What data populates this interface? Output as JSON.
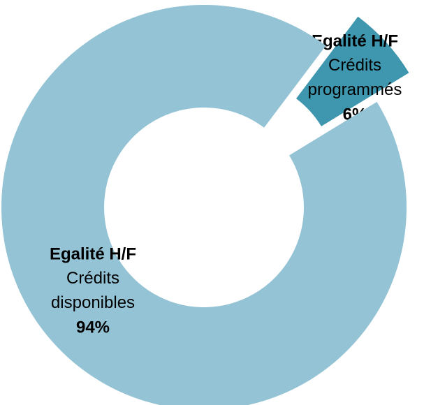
{
  "chart_data": {
    "type": "donut",
    "slices": [
      {
        "group": "Egalité H/F",
        "name": "Crédits programmés",
        "value": 6,
        "value_label": "6%",
        "color": "#3e97ae",
        "exploded": true
      },
      {
        "group": "Egalité H/F",
        "name": "Crédits disponibles",
        "value": 94,
        "value_label": "94%",
        "color": "#93c3d4",
        "exploded": false
      }
    ]
  }
}
